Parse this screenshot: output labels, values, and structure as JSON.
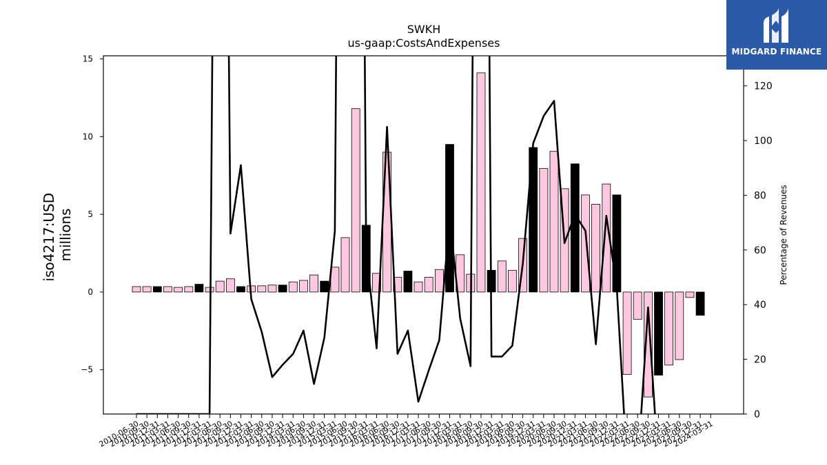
{
  "brand": {
    "name": "MIDGARD FINANCE",
    "bg_color": "#2b5aa8"
  },
  "chart_data": {
    "type": "bar",
    "title": "SWKH",
    "subtitle": "us-gaap:CostsAndExpenses",
    "ylabel": "iso4217:USD\nmillions",
    "ylabel_right": "Percentage of Revenues",
    "ylim": [
      -7.85,
      15.2
    ],
    "ylim_right": [
      0,
      131
    ],
    "yticks": [
      -5,
      0,
      5,
      10,
      15
    ],
    "yticks_right": [
      0,
      20,
      40,
      60,
      80,
      100,
      120
    ],
    "grid": false,
    "colors": {
      "bar_fill": "#ffc8e0",
      "bar_fill_fy": "#000000",
      "bar_edge": "#000000",
      "line": "#000000"
    },
    "categories": [
      "2010-06-30",
      "2010-09-30",
      "2010-12-31",
      "2011-03-31",
      "2011-06-30",
      "2011-09-30",
      "2011-12-31",
      "2012-03-31",
      "2012-06-30",
      "2012-09-30",
      "2012-12-31",
      "2013-03-31",
      "2013-06-30",
      "2013-09-30",
      "2013-12-31",
      "2014-03-31",
      "2014-06-30",
      "2014-09-30",
      "2014-12-31",
      "2015-03-31",
      "2015-06-30",
      "2015-09-30",
      "2015-12-31",
      "2016-03-31",
      "2016-06-30",
      "2016-09-30",
      "2016-12-31",
      "2017-03-31",
      "2017-06-30",
      "2017-09-30",
      "2017-12-31",
      "2018-03-31",
      "2018-06-30",
      "2018-09-30",
      "2018-12-31",
      "2019-03-31",
      "2019-06-30",
      "2019-09-30",
      "2019-12-31",
      "2020-03-31",
      "2020-06-30",
      "2020-09-30",
      "2020-12-31",
      "2021-03-31",
      "2021-06-30",
      "2021-09-30",
      "2021-12-31",
      "2022-03-31",
      "2022-06-30",
      "2022-09-30",
      "2022-12-31",
      "2023-03-31",
      "2023-06-30",
      "2023-09-30",
      "2023-12-31",
      "2024-03-31"
    ],
    "series": [
      {
        "values": [
          0.35,
          0.35,
          0.35,
          0.35,
          0.3,
          0.35,
          0.5,
          0.3,
          0.7,
          0.85,
          0.35,
          0.4,
          0.4,
          0.45,
          0.45,
          0.65,
          0.75,
          1.1,
          0.7,
          1.6,
          3.5,
          11.8,
          4.3,
          1.2,
          9.0,
          0.95,
          1.35,
          0.65,
          0.95,
          1.45,
          9.5,
          2.4,
          1.15,
          14.1,
          1.4,
          2.0,
          1.4,
          3.45,
          9.3,
          7.95,
          9.05,
          6.65,
          8.25,
          6.25,
          5.65,
          6.95,
          6.25,
          -5.3,
          -1.75,
          -6.75,
          -5.35,
          -4.7,
          -4.35,
          -0.35,
          -1.5,
          0
        ],
        "fiscal_year_end": [
          false,
          false,
          true,
          false,
          false,
          false,
          true,
          false,
          false,
          false,
          true,
          false,
          false,
          false,
          true,
          false,
          false,
          false,
          true,
          false,
          false,
          false,
          true,
          false,
          false,
          false,
          true,
          false,
          false,
          false,
          true,
          false,
          false,
          false,
          true,
          false,
          false,
          false,
          true,
          false,
          false,
          false,
          true,
          false,
          false,
          false,
          true,
          false,
          false,
          false,
          true,
          false,
          false,
          false,
          true,
          false
        ]
      }
    ],
    "line_series": {
      "name": "Percentage of Revenues",
      "values": [
        0,
        0,
        0,
        0,
        0,
        0,
        0,
        0,
        500,
        66,
        91,
        42,
        30,
        13.5,
        18,
        22,
        30.5,
        11,
        28,
        67,
        600,
        600,
        60,
        24,
        105,
        22,
        30.5,
        4.5,
        16,
        27,
        72,
        35,
        17.5,
        600,
        21,
        21,
        25,
        55,
        99,
        109,
        114.5,
        62.5,
        73,
        67,
        25.5,
        72.5,
        46.5,
        -20,
        -20,
        39,
        -20,
        null,
        null,
        null,
        null,
        null
      ]
    }
  }
}
